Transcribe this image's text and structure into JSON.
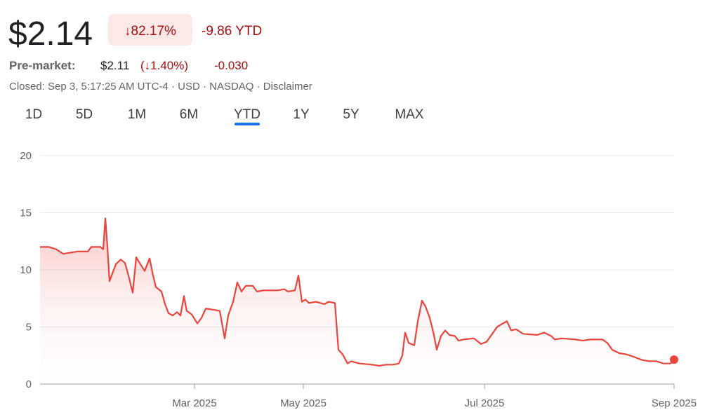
{
  "header": {
    "price": "$2.14",
    "change_percent": "↓82.17%",
    "change_ytd": "-9.86 YTD",
    "pre_market_label": "Pre-market:",
    "pre_market_price": "$2.11",
    "pre_market_percent": "(↓1.40%)",
    "pre_market_change": "-0.030",
    "status": "Closed: Sep 3, 5:17:25 AM UTC-4 · USD · NASDAQ · Disclaimer"
  },
  "tabs": {
    "items": [
      "1D",
      "5D",
      "1M",
      "6M",
      "YTD",
      "1Y",
      "5Y",
      "MAX"
    ],
    "selected": 4
  },
  "chart_data": {
    "type": "line",
    "x": [
      0,
      2.6,
      4.6,
      6.6,
      8.6,
      10.6,
      13.6,
      14.6,
      17.2,
      18,
      18.6,
      19.2,
      19.8,
      21.6,
      23,
      24.2,
      25.2,
      26.4,
      27.4,
      28.6,
      29.8,
      31.2,
      32.2,
      33,
      34.6,
      35.6,
      36.6,
      37.8,
      39,
      40,
      41,
      41.8,
      43.2,
      44.8,
      46,
      47.2,
      49.6,
      51.2,
      52.6,
      53.6,
      55,
      56.2,
      57.4,
      58.6,
      60.6,
      61.8,
      63.6,
      67.6,
      69.6,
      70.6,
      72.6,
      73.6,
      74.6,
      75.6,
      76.6,
      78.6,
      81,
      82.2,
      84,
      85,
      86.2,
      87.6,
      88.6,
      91,
      94.6,
      96.6,
      98.6,
      100.6,
      102.2,
      103.2,
      104,
      105,
      106.6,
      107.6,
      108.8,
      109.8,
      111,
      112.2,
      113,
      114.2,
      115.4,
      116.6,
      118.2,
      119.2,
      120.6,
      123.6,
      125.6,
      127.2,
      128.6,
      130.2,
      131.8,
      133,
      134.2,
      135.6,
      137.6,
      141.6,
      143.6,
      145.6,
      146.6,
      148.6,
      152.6,
      154.6,
      156.6,
      160.2,
      161.6,
      163,
      165,
      167,
      169,
      171.6,
      173.6,
      175.6,
      177.6,
      179.6,
      180.6
    ],
    "series": [
      {
        "color": "#e8453c",
        "values": [
          12.0,
          12.0,
          11.8,
          11.4,
          11.5,
          11.6,
          11.6,
          12.0,
          12.0,
          11.8,
          14.5,
          12,
          9.0,
          10.5,
          10.9,
          10.6,
          9.5,
          8.0,
          11.1,
          10.5,
          9.9,
          11.0,
          9.5,
          8.5,
          8.1,
          7.0,
          6.2,
          6.0,
          6.3,
          6.0,
          7.7,
          6.4,
          6.1,
          5.3,
          5.8,
          6.6,
          6.5,
          6.4,
          4.0,
          6.0,
          7.2,
          8.9,
          8.1,
          8.6,
          8.6,
          8.1,
          8.2,
          8.2,
          8.3,
          8.1,
          8.2,
          9.5,
          7.2,
          7.4,
          7.1,
          7.2,
          7.0,
          7.2,
          7.1,
          3.0,
          2.6,
          1.8,
          2.0,
          1.8,
          1.7,
          1.6,
          1.7,
          1.7,
          1.8,
          2.5,
          4.5,
          3.6,
          3.4,
          5.5,
          7.3,
          6.8,
          5.8,
          4.3,
          3.0,
          4.2,
          4.7,
          4.3,
          4.2,
          3.8,
          3.9,
          4.0,
          3.5,
          3.7,
          4.3,
          5.0,
          5.3,
          5.5,
          4.7,
          4.8,
          4.4,
          4.3,
          4.5,
          4.2,
          3.9,
          4.0,
          3.9,
          3.8,
          3.9,
          3.9,
          3.6,
          3.0,
          2.7,
          2.6,
          2.4,
          2.1,
          2.0,
          2.0,
          1.8,
          1.8,
          2.14
        ]
      }
    ],
    "xlim": [
      0,
      180.6
    ],
    "xticks": [
      {
        "value": 44,
        "label": "Mar 2025"
      },
      {
        "value": 75,
        "label": "May 2025"
      },
      {
        "value": 126.6,
        "label": "Jul 2025"
      },
      {
        "value": 180.6,
        "label": "Sep 2025"
      }
    ],
    "ylim": [
      0,
      20
    ],
    "yticks": [
      0,
      5,
      10,
      15,
      20
    ],
    "grid": true
  }
}
